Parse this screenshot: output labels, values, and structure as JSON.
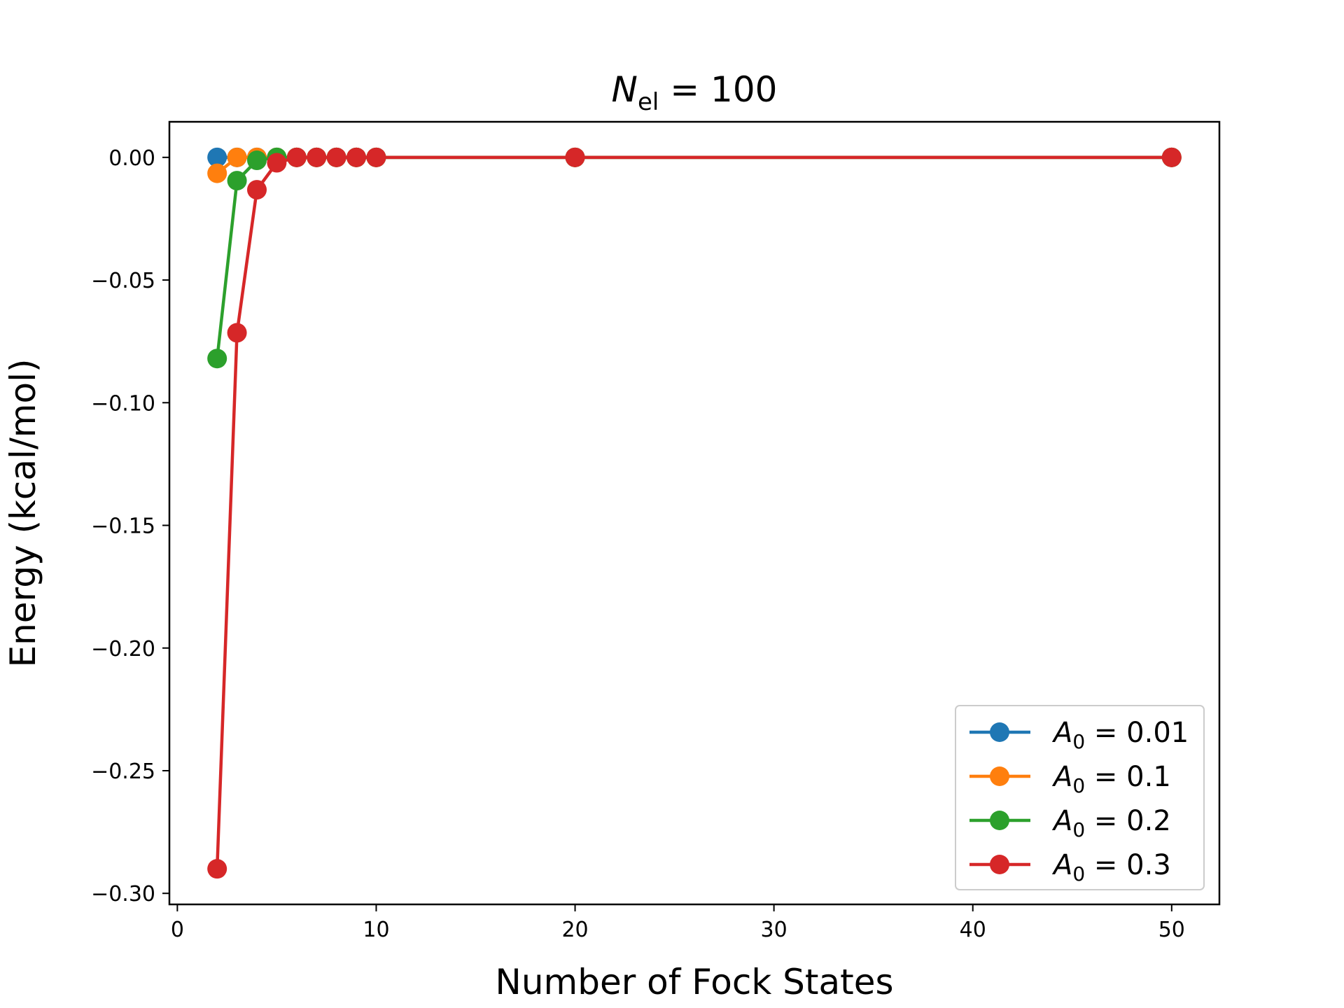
{
  "chart_data": {
    "type": "line",
    "title": {
      "symbol": "N",
      "subscript": "el",
      "rest": " = 100"
    },
    "xlabel": "Number of Fock States",
    "ylabel": "Energy (kcal/mol)",
    "xlim": [
      -0.4,
      52.4
    ],
    "ylim": [
      -0.3045,
      0.0145
    ],
    "xticks": [
      0,
      10,
      20,
      30,
      40,
      50
    ],
    "xtick_labels": [
      "0",
      "10",
      "20",
      "30",
      "40",
      "50"
    ],
    "yticks": [
      0.0,
      -0.05,
      -0.1,
      -0.15,
      -0.2,
      -0.25,
      -0.3
    ],
    "ytick_labels": [
      "0.00",
      "−0.05",
      "−0.10",
      "−0.15",
      "−0.20",
      "−0.25",
      "−0.30"
    ],
    "grid": false,
    "legend_position": "lower-right",
    "series": [
      {
        "name": "A0 = 0.01",
        "legend": {
          "symbol": "A",
          "subscript": "0",
          "rest": " = 0.01"
        },
        "color": "#1f77b4",
        "x": [
          2,
          3,
          4,
          5,
          6,
          7,
          8,
          9,
          10,
          20,
          50
        ],
        "y": [
          0.0,
          0.0,
          0.0,
          0.0,
          0.0,
          0.0,
          0.0,
          0.0,
          0.0,
          0.0,
          0.0
        ]
      },
      {
        "name": "A0 = 0.1",
        "legend": {
          "symbol": "A",
          "subscript": "0",
          "rest": " = 0.1"
        },
        "color": "#ff7f0e",
        "x": [
          2,
          3,
          4,
          5,
          6,
          7,
          8,
          9,
          10,
          20,
          50
        ],
        "y": [
          -0.0065,
          0.0,
          0.0,
          0.0,
          0.0,
          0.0,
          0.0,
          0.0,
          0.0,
          0.0,
          0.0
        ]
      },
      {
        "name": "A0 = 0.2",
        "legend": {
          "symbol": "A",
          "subscript": "0",
          "rest": " = 0.2"
        },
        "color": "#2ca02c",
        "x": [
          2,
          3,
          4,
          5,
          6,
          7,
          8,
          9,
          10,
          20,
          50
        ],
        "y": [
          -0.082,
          -0.0095,
          -0.0012,
          0.0,
          0.0,
          0.0,
          0.0,
          0.0,
          0.0,
          0.0,
          0.0
        ]
      },
      {
        "name": "A0 = 0.3",
        "legend": {
          "symbol": "A",
          "subscript": "0",
          "rest": " = 0.3"
        },
        "color": "#d62728",
        "x": [
          2,
          3,
          4,
          5,
          6,
          7,
          8,
          9,
          10,
          20,
          50
        ],
        "y": [
          -0.29,
          -0.0715,
          -0.0132,
          -0.0022,
          0.0,
          0.0,
          0.0,
          0.0,
          0.0,
          0.0,
          0.0
        ]
      }
    ]
  }
}
